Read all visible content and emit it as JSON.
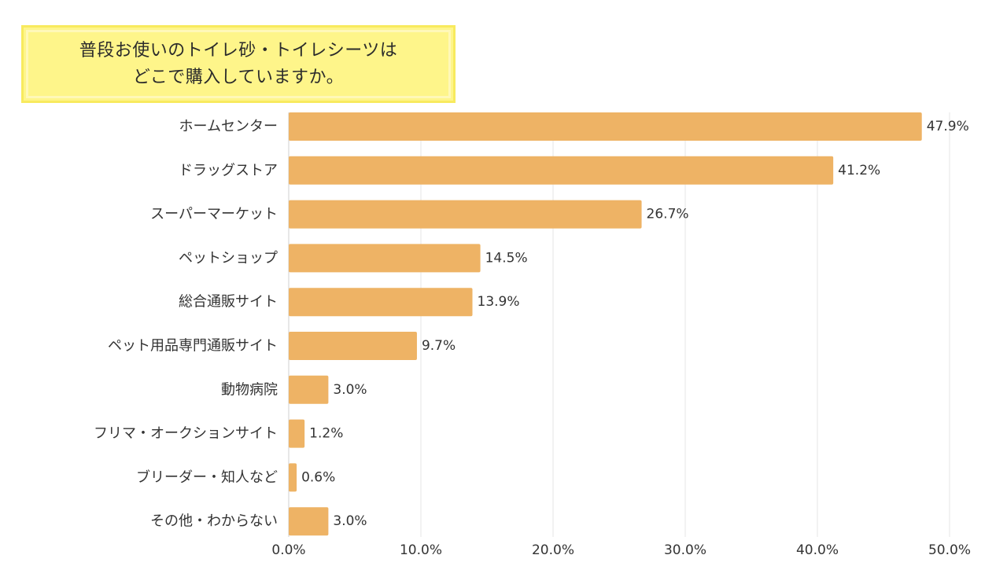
{
  "title": {
    "line1": "普段お使いのトイレ砂・トイレシーツは",
    "line2": "どこで購入していますか。"
  },
  "colors": {
    "bar": "#eeb365",
    "grid": "#e4e4e4",
    "axis": "#cfcfcf",
    "title_bg": "#fef58a"
  },
  "chart_data": {
    "type": "bar",
    "orientation": "horizontal",
    "title": "普段お使いのトイレ砂・トイレシーツは どこで購入していますか。",
    "categories": [
      "ホームセンター",
      "ドラッグストア",
      "スーパーマーケット",
      "ペットショップ",
      "総合通販サイト",
      "ペット用品専門通販サイト",
      "動物病院",
      "フリマ・オークションサイト",
      "ブリーダー・知人など",
      "その他・わからない"
    ],
    "values": [
      47.9,
      41.2,
      26.7,
      14.5,
      13.9,
      9.7,
      3.0,
      1.2,
      0.6,
      3.0
    ],
    "value_labels": [
      "47.9%",
      "41.2%",
      "26.7%",
      "14.5%",
      "13.9%",
      "9.7%",
      "3.0%",
      "1.2%",
      "0.6%",
      "3.0%"
    ],
    "xlim": [
      0,
      50
    ],
    "xticks": [
      0,
      10,
      20,
      30,
      40,
      50
    ],
    "xtick_labels": [
      "0.0%",
      "10.0%",
      "20.0%",
      "30.0%",
      "40.0%",
      "50.0%"
    ],
    "grid": true,
    "xlabel": "",
    "ylabel": ""
  }
}
